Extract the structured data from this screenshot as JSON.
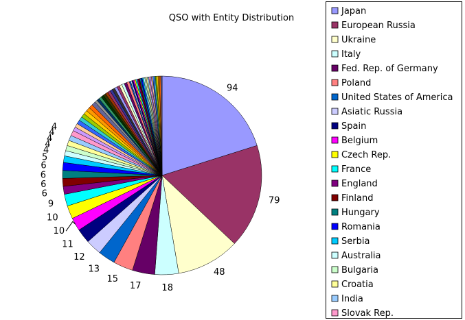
{
  "chart_data": {
    "type": "pie",
    "title": "QSO with Entity Distribution",
    "categories": [
      "Japan",
      "European Russia",
      "Ukraine",
      "Italy",
      "Fed. Rep. of Germany",
      "Poland",
      "United States of America",
      "Asiatic Russia",
      "Spain",
      "Belgium",
      "Czech Rep.",
      "France",
      "England",
      "Finland",
      "Hungary",
      "Romania",
      "Serbia",
      "Australia",
      "Bulgaria",
      "Croatia",
      "India",
      "Slovak Rep."
    ],
    "values": [
      94,
      79,
      48,
      18,
      17,
      15,
      13,
      12,
      11,
      10,
      10,
      9,
      6,
      6,
      6,
      6,
      5,
      4,
      4,
      4,
      4,
      4
    ],
    "data_labels": [
      "94",
      "79",
      "48",
      "18",
      "17",
      "15",
      "13",
      "12",
      "11",
      "10",
      "10",
      "9",
      "6",
      "6",
      "6",
      "6",
      "5",
      "4",
      "4",
      "4",
      "4",
      "4"
    ],
    "colors": [
      "#9999ff",
      "#993366",
      "#ffffcc",
      "#ccffff",
      "#660066",
      "#ff8080",
      "#0066cc",
      "#ccccff",
      "#000080",
      "#ff00ff",
      "#ffff00",
      "#00ffff",
      "#800080",
      "#800000",
      "#008080",
      "#0000ff",
      "#00ccff",
      "#ccffff",
      "#ccffcc",
      "#ffff99",
      "#99ccff",
      "#ff99cc"
    ],
    "other_slices": {
      "values": [
        3,
        3,
        3,
        3,
        3,
        3,
        3,
        3,
        3,
        2,
        2,
        2,
        2,
        2,
        2,
        2,
        2,
        2,
        2,
        2,
        2,
        2,
        2,
        2,
        1,
        1,
        1,
        1,
        1,
        1,
        1,
        1,
        1,
        1,
        1,
        1,
        1,
        1,
        1,
        1,
        1,
        1,
        1,
        1,
        1,
        1,
        1,
        1,
        1
      ],
      "colors": [
        "#cc99ff",
        "#ffcc99",
        "#3366ff",
        "#33cccc",
        "#99cc00",
        "#ffcc00",
        "#ff9900",
        "#ff6600",
        "#666699",
        "#969696",
        "#003366",
        "#339966",
        "#003300",
        "#333300",
        "#993300",
        "#993366",
        "#333399",
        "#333333",
        "#9999ff",
        "#993366",
        "#ffffcc",
        "#ccffff",
        "#660066",
        "#ff8080",
        "#0066cc",
        "#ccccff",
        "#000080",
        "#ff00ff",
        "#ffff00",
        "#00ffff",
        "#800080",
        "#800000",
        "#008080",
        "#0000ff",
        "#00ccff",
        "#ccffff",
        "#ccffcc",
        "#ffff99",
        "#99ccff",
        "#ff99cc",
        "#cc99ff",
        "#ffcc99",
        "#3366ff",
        "#33cccc",
        "#99cc00",
        "#ffcc00",
        "#ff9900",
        "#ff6600",
        "#666699"
      ]
    },
    "legend_position": "right",
    "grid": false
  }
}
